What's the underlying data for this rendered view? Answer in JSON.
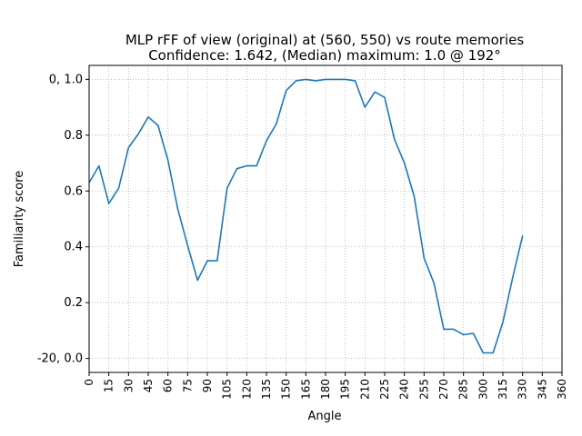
{
  "chart_data": {
    "type": "line",
    "title_line1": "MLP rFF of view (original) at (560, 550) vs route memories",
    "title_line2": "Confidence: 1.642, (Median) maximum: 1.0 @ 192°",
    "xlabel": "Angle",
    "ylabel": "Familiarity score",
    "xlim": [
      0,
      360
    ],
    "ylim": [
      -0.05,
      1.05
    ],
    "grid": true,
    "line_color": "#1f77b4",
    "x_ticks": [
      0,
      15,
      30,
      45,
      60,
      75,
      90,
      105,
      120,
      135,
      150,
      165,
      180,
      195,
      210,
      225,
      240,
      255,
      270,
      285,
      300,
      315,
      330,
      345,
      360
    ],
    "x_tick_labels": [
      "0",
      "15",
      "30",
      "45",
      "60",
      "75",
      "90",
      "105",
      "120",
      "135",
      "150",
      "165",
      "180",
      "195",
      "210",
      "225",
      "240",
      "255",
      "270",
      "285",
      "300",
      "315",
      "330",
      "345",
      "360"
    ],
    "y_ticks": [
      0.0,
      0.2,
      0.4,
      0.6,
      0.8,
      1.0
    ],
    "y_tick_labels": [
      "-20, 0.0",
      "0.2",
      "0.4",
      "0.6",
      "0.8",
      "0, 1.0"
    ],
    "series": [
      {
        "x": [
          0,
          7.5,
          15,
          22.5,
          30,
          37.5,
          45,
          52.5,
          60,
          67.5,
          75,
          82.5,
          90,
          97.5,
          105,
          112.5,
          120,
          127.5,
          135,
          142.5,
          150,
          157.5,
          165,
          172.5,
          180,
          187.5,
          195,
          202.5,
          210,
          217.5,
          225,
          232.5,
          240,
          247.5,
          255,
          262.5,
          270,
          277.5,
          285,
          292.5,
          300,
          307.5,
          315,
          322.5,
          330,
          337.5,
          345,
          352.5
        ],
        "y": [
          0.63,
          0.69,
          0.555,
          0.61,
          0.755,
          0.805,
          0.865,
          0.835,
          0.71,
          0.535,
          0.405,
          0.28,
          0.35,
          0.35,
          0.61,
          0.68,
          0.69,
          0.69,
          0.78,
          0.84,
          0.96,
          0.995,
          1.0,
          0.995,
          1.0,
          1.0,
          1.0,
          0.995,
          0.9,
          0.955,
          0.935,
          0.785,
          0.7,
          0.58,
          0.36,
          0.27,
          0.105,
          0.105,
          0.085,
          0.09,
          0.02,
          0.02,
          0.13,
          0.29,
          0.44,
          null,
          null,
          null
        ]
      }
    ]
  }
}
